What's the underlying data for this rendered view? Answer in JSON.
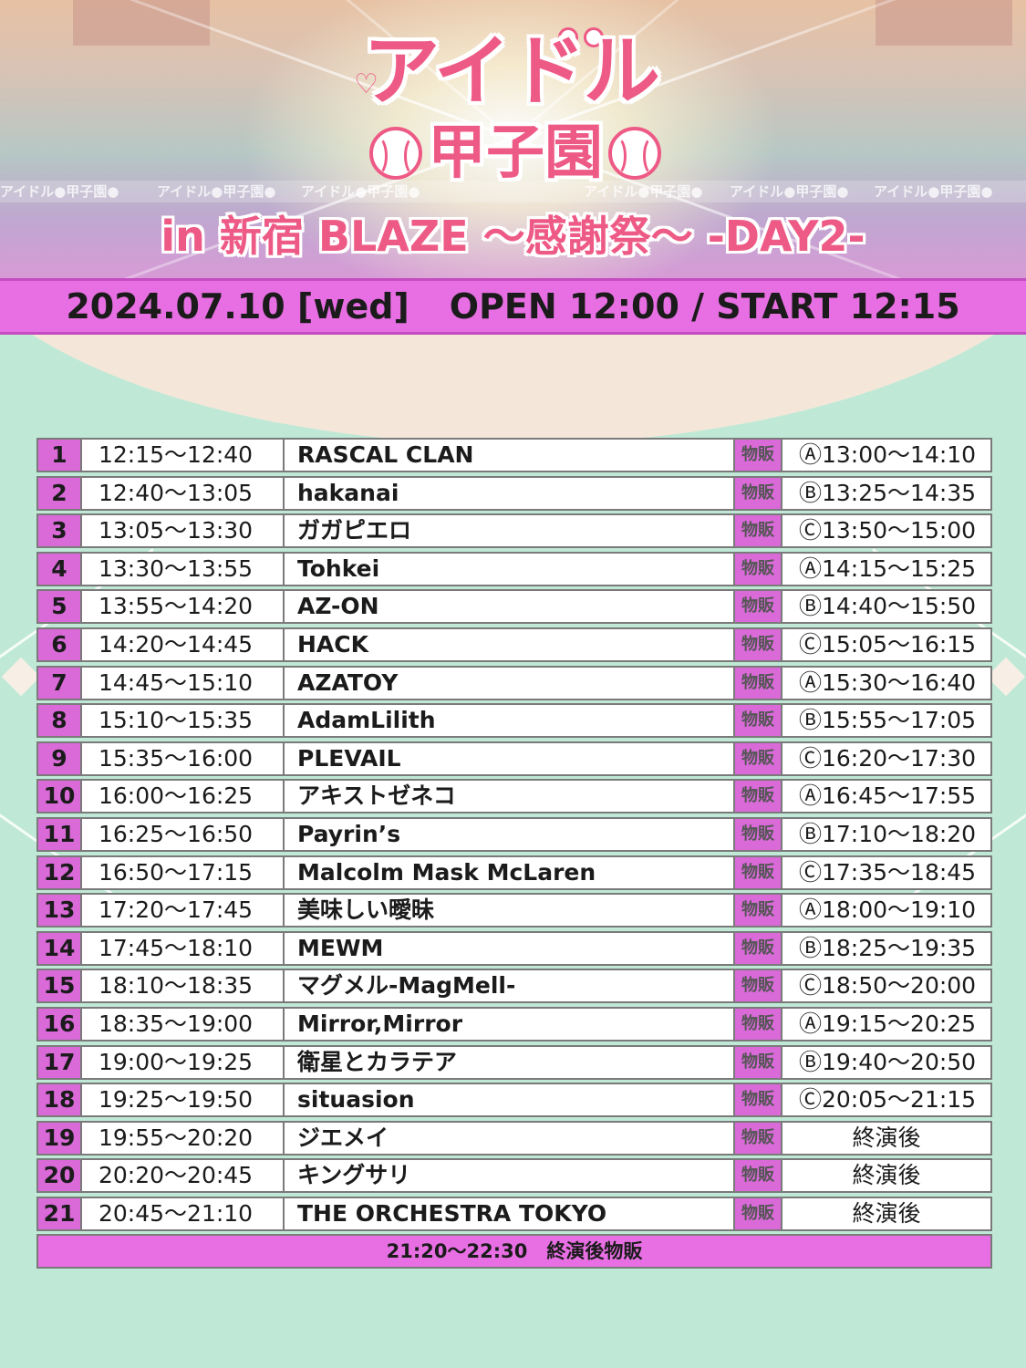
{
  "header": {
    "logo_title": "アイドル",
    "logo_subtitle": "甲子園",
    "event_subtitle": "in 新宿 BLAZE ～感謝祭～ -DAY2-",
    "band_repeat_text": "アイドル●甲子園●",
    "colors": {
      "logo": "#ee5a86",
      "date_band": "#e86fe3",
      "number_cell": "#d96ad8",
      "field": "#bfe9d6"
    }
  },
  "date_band": {
    "date": "2024.07.10 [wed]",
    "times": "OPEN 12:00 / START 12:15"
  },
  "timetable": {
    "goods_label": "物販",
    "rows": [
      {
        "num": "1",
        "time": "12:15～12:40",
        "artist": "RASCAL CLAN",
        "goods_time": "Ⓐ13:00～14:10"
      },
      {
        "num": "2",
        "time": "12:40～13:05",
        "artist": "hakanai",
        "goods_time": "Ⓑ13:25～14:35"
      },
      {
        "num": "3",
        "time": "13:05～13:30",
        "artist": "ガガピエロ",
        "goods_time": "Ⓒ13:50～15:00"
      },
      {
        "num": "4",
        "time": "13:30～13:55",
        "artist": "Tohkei",
        "goods_time": "Ⓐ14:15～15:25"
      },
      {
        "num": "5",
        "time": "13:55～14:20",
        "artist": "AZ-ON",
        "goods_time": "Ⓑ14:40～15:50"
      },
      {
        "num": "6",
        "time": "14:20～14:45",
        "artist": "HACK",
        "goods_time": "Ⓒ15:05～16:15"
      },
      {
        "num": "7",
        "time": "14:45～15:10",
        "artist": "AZATOY",
        "goods_time": "Ⓐ15:30～16:40"
      },
      {
        "num": "8",
        "time": "15:10～15:35",
        "artist": "AdamLilith",
        "goods_time": "Ⓑ15:55～17:05"
      },
      {
        "num": "9",
        "time": "15:35～16:00",
        "artist": "PLEVAIL",
        "goods_time": "Ⓒ16:20～17:30"
      },
      {
        "num": "10",
        "time": "16:00～16:25",
        "artist": "アキストゼネコ",
        "goods_time": "Ⓐ16:45～17:55"
      },
      {
        "num": "11",
        "time": "16:25～16:50",
        "artist": "Payrin’s",
        "goods_time": "Ⓑ17:10～18:20"
      },
      {
        "num": "12",
        "time": "16:50～17:15",
        "artist": "Malcolm Mask McLaren",
        "goods_time": "Ⓒ17:35～18:45"
      },
      {
        "num": "13",
        "time": "17:20～17:45",
        "artist": "美味しい曖昧",
        "goods_time": "Ⓐ18:00～19:10"
      },
      {
        "num": "14",
        "time": "17:45～18:10",
        "artist": "MEWM",
        "goods_time": "Ⓑ18:25～19:35"
      },
      {
        "num": "15",
        "time": "18:10～18:35",
        "artist": "マグメル-MagMell-",
        "goods_time": "Ⓒ18:50～20:00"
      },
      {
        "num": "16",
        "time": "18:35～19:00",
        "artist": "Mirror,Mirror",
        "goods_time": "Ⓐ19:15～20:25"
      },
      {
        "num": "17",
        "time": "19:00～19:25",
        "artist": "衛星とカラテア",
        "goods_time": "Ⓑ19:40～20:50"
      },
      {
        "num": "18",
        "time": "19:25～19:50",
        "artist": "situasion",
        "goods_time": "Ⓒ20:05～21:15"
      },
      {
        "num": "19",
        "time": "19:55～20:20",
        "artist": "ジエメイ",
        "goods_time": "終演後"
      },
      {
        "num": "20",
        "time": "20:20～20:45",
        "artist": "キングサリ",
        "goods_time": "終演後"
      },
      {
        "num": "21",
        "time": "20:45～21:10",
        "artist": "THE ORCHESTRA TOKYO",
        "goods_time": "終演後"
      }
    ],
    "footer": "21:20～22:30　終演後物販"
  }
}
